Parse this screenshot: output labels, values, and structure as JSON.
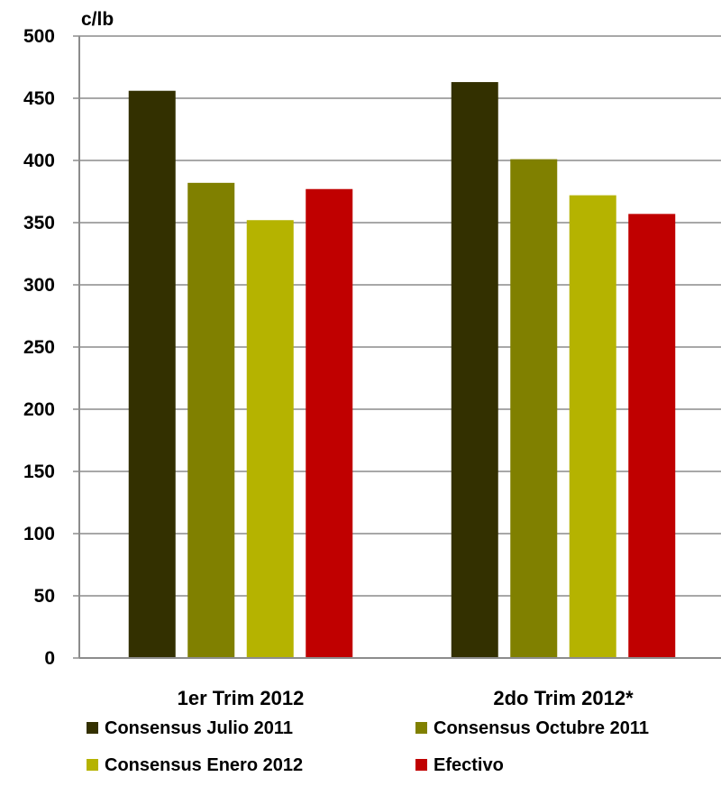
{
  "chart_data": {
    "type": "bar",
    "unit_label": "c/lb",
    "categories": [
      "1er Trim 2012",
      "2do Trim 2012*"
    ],
    "series": [
      {
        "name": "Consensus Julio 2011",
        "color": "#333000",
        "values": [
          456,
          463
        ]
      },
      {
        "name": "Consensus Octubre 2011",
        "color": "#808000",
        "values": [
          382,
          401
        ]
      },
      {
        "name": "Consensus Enero 2012",
        "color": "#b5b300",
        "values": [
          352,
          372
        ]
      },
      {
        "name": "Efectivo",
        "color": "#c00000",
        "values": [
          377,
          357
        ]
      }
    ],
    "ylim": [
      0,
      500
    ],
    "yticks": [
      "0",
      "50",
      "100",
      "150",
      "200",
      "250",
      "300",
      "350",
      "400",
      "450",
      "500"
    ],
    "grid": true,
    "legend_position": "bottom"
  }
}
